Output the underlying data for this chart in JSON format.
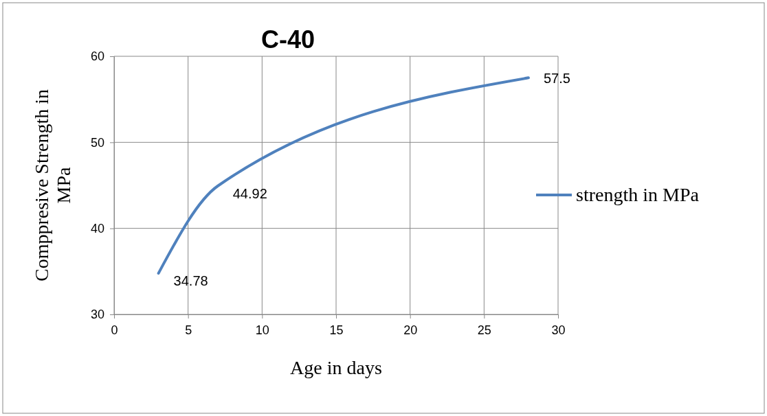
{
  "chart_data": {
    "type": "line",
    "title": "C-40",
    "xlabel": "Age in days",
    "ylabel": "Comppresive Strength in MPa",
    "x": [
      3,
      7,
      28
    ],
    "series": [
      {
        "name": "strength in MPa",
        "color": "#4f81bd",
        "values": [
          34.78,
          44.92,
          57.5
        ]
      }
    ],
    "xlim": [
      0,
      30
    ],
    "xticks": [
      0,
      5,
      10,
      15,
      20,
      25,
      30
    ],
    "ylim": [
      30,
      60
    ],
    "yticks": [
      30,
      40,
      50,
      60
    ],
    "grid": true,
    "legend": "right",
    "data_labels": true,
    "marker": "none",
    "line_style": "solid"
  }
}
